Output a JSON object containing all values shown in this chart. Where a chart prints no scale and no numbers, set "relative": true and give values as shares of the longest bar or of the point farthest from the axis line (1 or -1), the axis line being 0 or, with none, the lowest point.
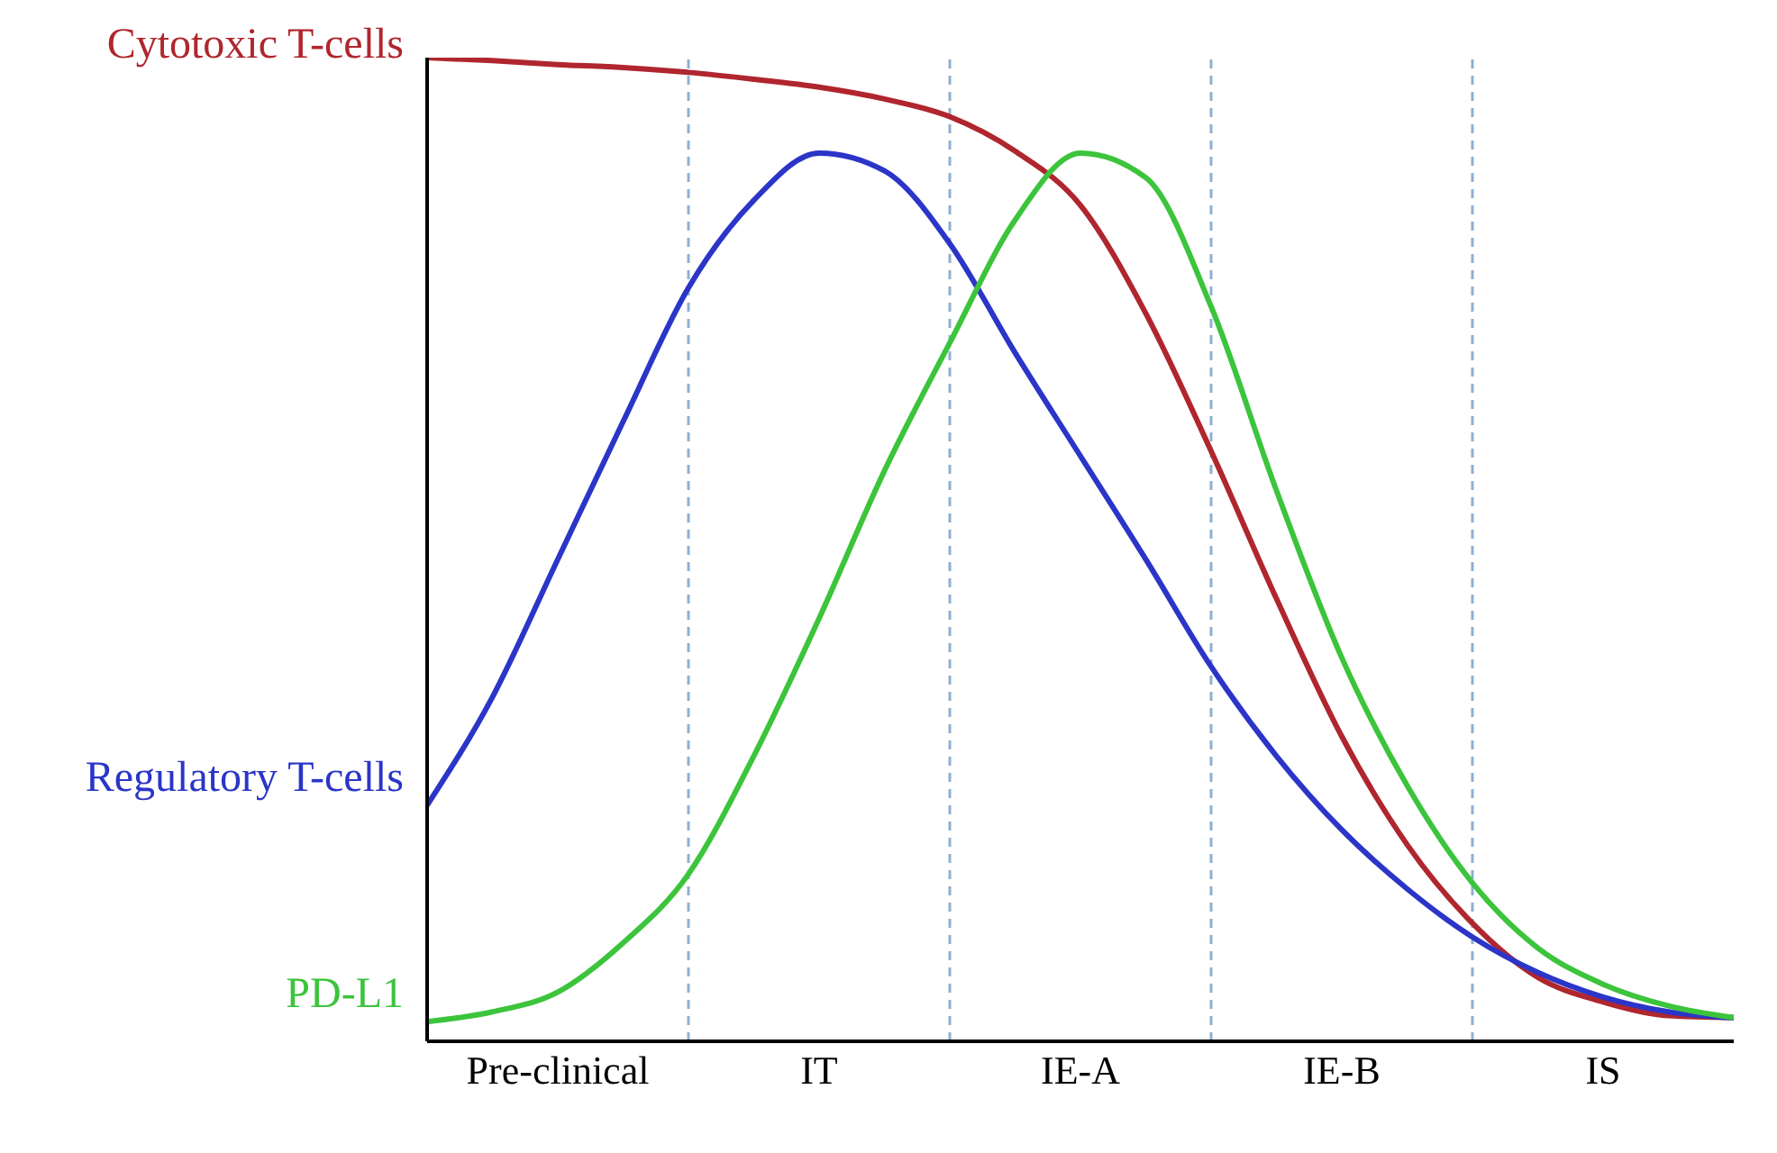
{
  "chart_data": {
    "type": "line",
    "relative": true,
    "categories": [
      null,
      null,
      "Pre-clinical",
      null,
      null,
      null,
      "IT",
      null,
      null,
      null,
      "IE-A",
      null,
      null,
      null,
      "IE-B",
      null,
      null,
      null,
      "IS",
      null,
      null
    ],
    "series": [
      {
        "name": "Cytotoxic T-cells",
        "color": "#b0262e",
        "values": [
          1,
          0.997,
          0.993,
          0.99,
          0.985,
          0.978,
          0.97,
          0.958,
          0.94,
          0.905,
          0.85,
          0.74,
          0.6,
          0.45,
          0.31,
          0.2,
          0.12,
          0.065,
          0.04,
          0.026,
          0.024
        ]
      },
      {
        "name": "Regulatory T-cells",
        "color": "#2b35c8",
        "values": [
          0.24,
          0.35,
          0.49,
          0.63,
          0.766,
          0.855,
          0.903,
          0.885,
          0.811,
          0.7,
          0.595,
          0.49,
          0.381,
          0.29,
          0.215,
          0.155,
          0.106,
          0.07,
          0.045,
          0.03,
          0.024
        ]
      },
      {
        "name": "PD-L1",
        "color": "#3cc43c",
        "values": [
          0.02,
          0.03,
          0.05,
          0.1,
          0.17,
          0.29,
          0.43,
          0.58,
          0.71,
          0.835,
          0.903,
          0.878,
          0.747,
          0.56,
          0.39,
          0.26,
          0.161,
          0.095,
          0.058,
          0.036,
          0.024
        ]
      }
    ],
    "grid": "x",
    "marker": "none",
    "line_style": "solid",
    "tick_labels": "x"
  }
}
